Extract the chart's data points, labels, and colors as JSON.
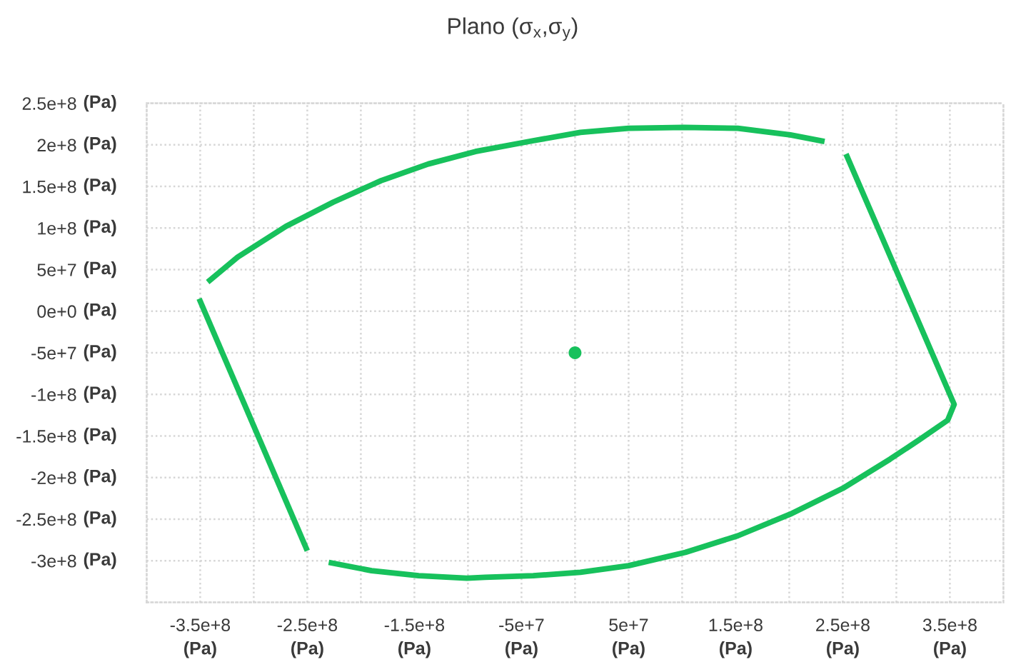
{
  "chart_data": {
    "type": "line",
    "title": "Plano (σ$_{x}$,σ$_{y}$)",
    "xlabel": "(Pa)",
    "ylabel": "(Pa)",
    "series": [
      {
        "color": "#17c15c",
        "x": [
          -343000000.0,
          -315000000.0,
          -270000000.0,
          -226000000.0,
          -181000000.0,
          -137000000.0,
          -93000000.0,
          -39000000.0,
          5000000.0,
          50000000.0,
          102000000.0,
          152000000.0,
          201000000.0,
          233000000.0
        ],
        "values": [
          35000000.0,
          65000000.0,
          102000000.0,
          131000000.0,
          157000000.0,
          177000000.0,
          192000000.0,
          205000000.0,
          215000000.0,
          220000000.0,
          221000000.0,
          220000000.0,
          212000000.0,
          204000000.0
        ]
      },
      {
        "color": "#17c15c",
        "x": [
          253000000.0,
          354000000.0,
          348000000.0,
          321000000.0,
          294000000.0,
          250000000.0,
          201000000.0,
          152000000.0,
          103000000.0,
          50000000.0,
          5000000.0,
          -39000000.0,
          -84000000.0,
          -101000000.0,
          -146000000.0,
          -190000000.0,
          -230000000.0
        ],
        "values": [
          189000000.0,
          -112000000.0,
          -131000000.0,
          -155000000.0,
          -178000000.0,
          -213000000.0,
          -244000000.0,
          -270000000.0,
          -290000000.0,
          -306000000.0,
          -314000000.0,
          -318000000.0,
          -320000000.0,
          -321000000.0,
          -318000000.0,
          -312000000.0,
          -302000000.0
        ]
      },
      {
        "color": "#17c15c",
        "x": [
          -351000000.0,
          -250000000.0
        ],
        "values": [
          15000000.0,
          -288000000.0
        ]
      },
      {
        "type": "scatter",
        "color": "#17c15c",
        "x": [
          0
        ],
        "values": [
          -50000000.0
        ]
      }
    ],
    "xlim": [
      -400000000.0,
      400000000.0
    ],
    "xticks": [
      {
        "value": -400000000.0,
        "label": null
      },
      {
        "value": -350000000.0,
        "label": "-3.5e+8"
      },
      {
        "value": -300000000.0,
        "label": null
      },
      {
        "value": -250000000.0,
        "label": "-2.5e+8"
      },
      {
        "value": -200000000.0,
        "label": null
      },
      {
        "value": -150000000.0,
        "label": "-1.5e+8"
      },
      {
        "value": -100000000.0,
        "label": null
      },
      {
        "value": -50000000.0,
        "label": "-5e+7"
      },
      {
        "value": 0,
        "label": null
      },
      {
        "value": 50000000.0,
        "label": "5e+7"
      },
      {
        "value": 100000000.0,
        "label": null
      },
      {
        "value": 150000000.0,
        "label": "1.5e+8"
      },
      {
        "value": 200000000.0,
        "label": null
      },
      {
        "value": 250000000.0,
        "label": "2.5e+8"
      },
      {
        "value": 300000000.0,
        "label": null
      },
      {
        "value": 350000000.0,
        "label": "3.5e+8"
      },
      {
        "value": 400000000.0,
        "label": null
      }
    ],
    "ylim": [
      -350000000.0,
      250000000.0
    ],
    "yticks": [
      {
        "value": -350000000.0,
        "label": null
      },
      {
        "value": -300000000.0,
        "label": "-3e+8"
      },
      {
        "value": -250000000.0,
        "label": "-2.5e+8"
      },
      {
        "value": -200000000.0,
        "label": "-2e+8"
      },
      {
        "value": -150000000.0,
        "label": "-1.5e+8"
      },
      {
        "value": -100000000.0,
        "label": "-1e+8"
      },
      {
        "value": -50000000.0,
        "label": "-5e+7"
      },
      {
        "value": 0,
        "label": "0e+0"
      },
      {
        "value": 50000000.0,
        "label": "5e+7"
      },
      {
        "value": 100000000.0,
        "label": "1e+8"
      },
      {
        "value": 150000000.0,
        "label": "1.5e+8"
      },
      {
        "value": 200000000.0,
        "label": "2e+8"
      },
      {
        "value": 250000000.0,
        "label": "2.5e+8"
      }
    ],
    "grid": true
  }
}
